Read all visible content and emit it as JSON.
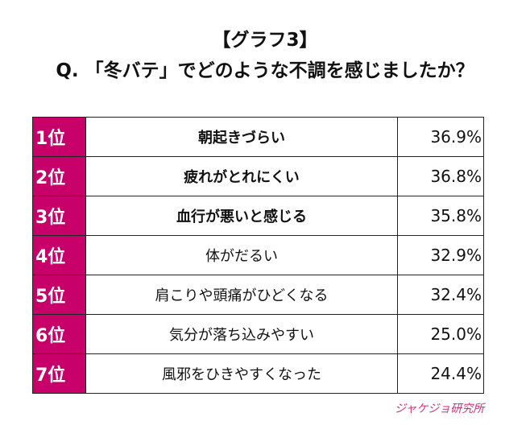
{
  "title": "【グラフ3】",
  "question": "Q. 「冬バテ」でどのような不調を感じましたか？",
  "rows": [
    {
      "rank": "1位",
      "label": "朝起きづらい",
      "value": "36.9%",
      "bold": true
    },
    {
      "rank": "2位",
      "label": "疲れがとれにくい",
      "value": "36.8%",
      "bold": true
    },
    {
      "rank": "3位",
      "label": "血行が悪いと感じる",
      "value": "35.8%",
      "bold": true
    },
    {
      "rank": "4位",
      "label": "体がだるい",
      "value": "32.9%",
      "bold": false
    },
    {
      "rank": "5位",
      "label": "肩こりや頭痛がひどくなる",
      "value": "32.4%",
      "bold": false
    },
    {
      "rank": "6位",
      "label": "気分が落ち込みやすい",
      "value": "25.0%",
      "bold": false
    },
    {
      "rank": "7位",
      "label": "風邪をひきやすくなった",
      "value": "24.4%",
      "bold": false
    }
  ],
  "logo": "ジャケジョ研究所",
  "colors": {
    "accent": "#c8006a"
  }
}
